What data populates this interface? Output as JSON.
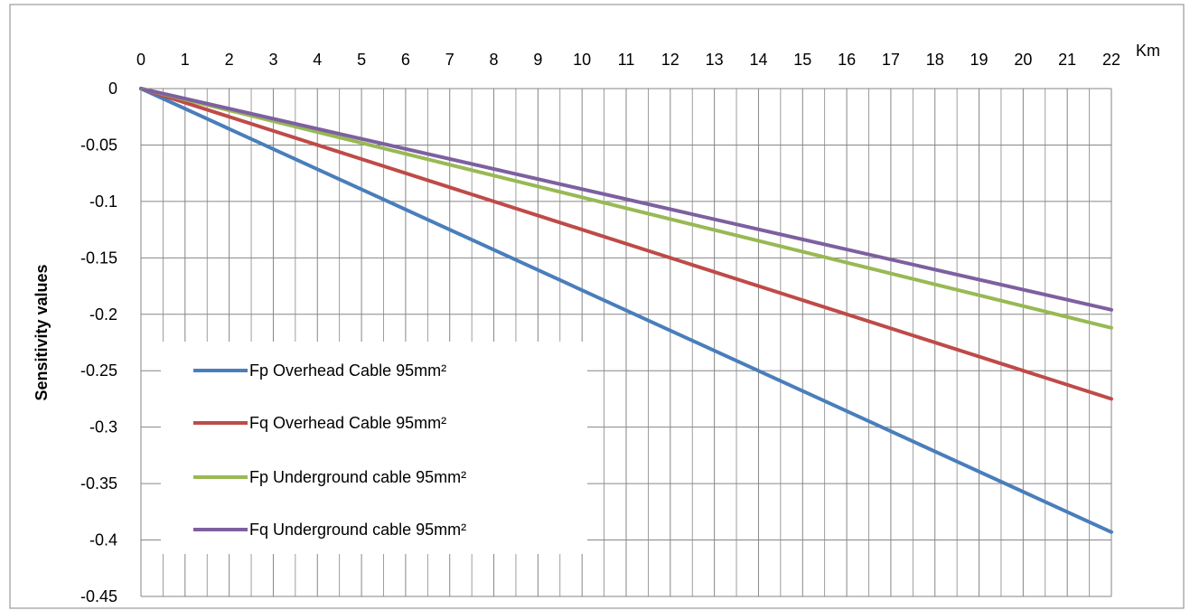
{
  "chart_data": {
    "type": "line",
    "title": "",
    "xlabel": "",
    "x_unit": "Km",
    "ylabel": "Sensitivity values",
    "x": [
      0,
      22
    ],
    "xlim": [
      0,
      22
    ],
    "ylim": [
      -0.45,
      0
    ],
    "x_ticks": [
      "0",
      "1",
      "2",
      "3",
      "4",
      "5",
      "6",
      "7",
      "8",
      "9",
      "10",
      "11",
      "12",
      "13",
      "14",
      "15",
      "16",
      "17",
      "18",
      "19",
      "20",
      "21",
      "22"
    ],
    "y_ticks": [
      "0",
      "-0.05",
      "-0.1",
      "-0.15",
      "-0.2",
      "-0.25",
      "-0.3",
      "-0.35",
      "-0.4",
      "-0.45"
    ],
    "grid": true,
    "legend_position": "left-center",
    "series": [
      {
        "name": "Fp Overhead Cable 95mm²",
        "color": "#4a7ebb",
        "values": [
          0,
          -0.393
        ]
      },
      {
        "name": "Fq Overhead Cable 95mm²",
        "color": "#be4b48",
        "values": [
          0,
          -0.275
        ]
      },
      {
        "name": "Fp Underground cable 95mm²",
        "color": "#98b954",
        "values": [
          0,
          -0.212
        ]
      },
      {
        "name": "Fq Underground cable 95mm²",
        "color": "#7d60a0",
        "values": [
          0,
          -0.196
        ]
      }
    ]
  }
}
